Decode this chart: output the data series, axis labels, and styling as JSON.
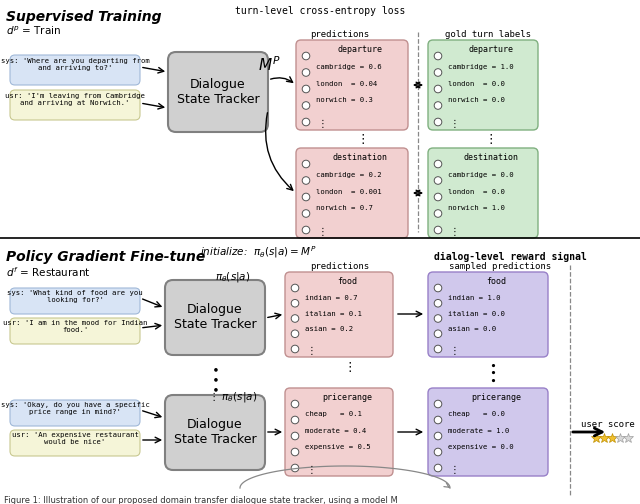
{
  "bg_color": "#ffffff",
  "top_section_title": "Supervised Training",
  "top_domain_label": "$d^p$ = Train",
  "top_right_title": "turn-level cross-entropy loss",
  "bottom_section_title": "Policy Gradient Fine-tune",
  "bottom_domain_label": "$d^f$ = Restaurant",
  "bottom_right_title": "dialog-level reward signal",
  "initialize_label": "initialize:  $\\pi_\\theta(s|a) = M^P$",
  "mp_label": "$M^P$",
  "pi_label_top": "$\\pi_\\theta(s|a)$",
  "pi_label_mid": "$\\vdots\\ \\pi_\\theta(s|a)$",
  "predictions_label": "predictions",
  "gold_labels_label": "gold turn labels",
  "sampled_predictions_label": "sampled predictions",
  "user_score_label": "user score",
  "dialogue_box_color": "#d0d0d0",
  "dialogue_box_edge": "#808080",
  "dialogue_box_text": "Dialogue\nState Tracker",
  "chat_sys_color": "#d8e4f5",
  "chat_sys_edge": "#a0b8d8",
  "chat_usr_color": "#f5f5d8",
  "chat_usr_edge": "#c8c890",
  "pred_box_pink": "#f2d0d0",
  "pred_box_pink_edge": "#c09090",
  "pred_box_green": "#d0ead0",
  "pred_box_green_edge": "#80b080",
  "pred_box_purple": "#d0c8ec",
  "pred_box_purple_edge": "#9880c8",
  "top_sys_text": "sys: 'Where are you departing from\nand arriving to?'",
  "top_usr_text": "usr: 'I'm leaving from Cambridge\nand arriving at Norwich.'",
  "bot_sys1_text": "sys: 'What kind of food are you\nlooking for?'",
  "bot_usr1_text": "usr: 'I am in the mood for Indian\nfood.'",
  "bot_sys2_text": "sys: 'Okay, do you have a specific\nprice range in mind?'",
  "bot_usr2_text": "usr: 'An expensive restaurant\nwould be nice'",
  "dep_pred_title": "departure",
  "dep_pred_items": [
    "cambridge = 0.6",
    "london  = 0.04",
    "norwich = 0.3"
  ],
  "dep_gold_title": "departure",
  "dep_gold_items": [
    "cambridge = 1.0",
    "london  = 0.0",
    "norwich = 0.0"
  ],
  "dst_pred_title": "destination",
  "dst_pred_items": [
    "cambridge = 0.2",
    "london  = 0.001",
    "norwich = 0.7"
  ],
  "dst_gold_title": "destination",
  "dst_gold_items": [
    "cambridge = 0.0",
    "london  = 0.0",
    "norwich = 1.0"
  ],
  "food_pred_title": "food",
  "food_pred_items": [
    "indian = 0.7",
    "italian = 0.1",
    "asian = 0.2"
  ],
  "food_samp_title": "food",
  "food_samp_items": [
    "indian = 1.0",
    "italian = 0.0",
    "asian = 0.0"
  ],
  "price_pred_title": "pricerange",
  "price_pred_items": [
    "cheap   = 0.1",
    "moderate = 0.4",
    "expensive = 0.5"
  ],
  "price_samp_title": "pricerange",
  "price_samp_items": [
    "cheap   = 0.0",
    "moderate = 1.0",
    "expensive = 0.0"
  ],
  "caption": "Figure 1: Illustration of our proposed domain transfer dialogue state tracker, using a model M",
  "star_filled_color": "#f0c030",
  "star_empty_color": "#d8d8d8",
  "stars": [
    1,
    1,
    1,
    0,
    0
  ]
}
